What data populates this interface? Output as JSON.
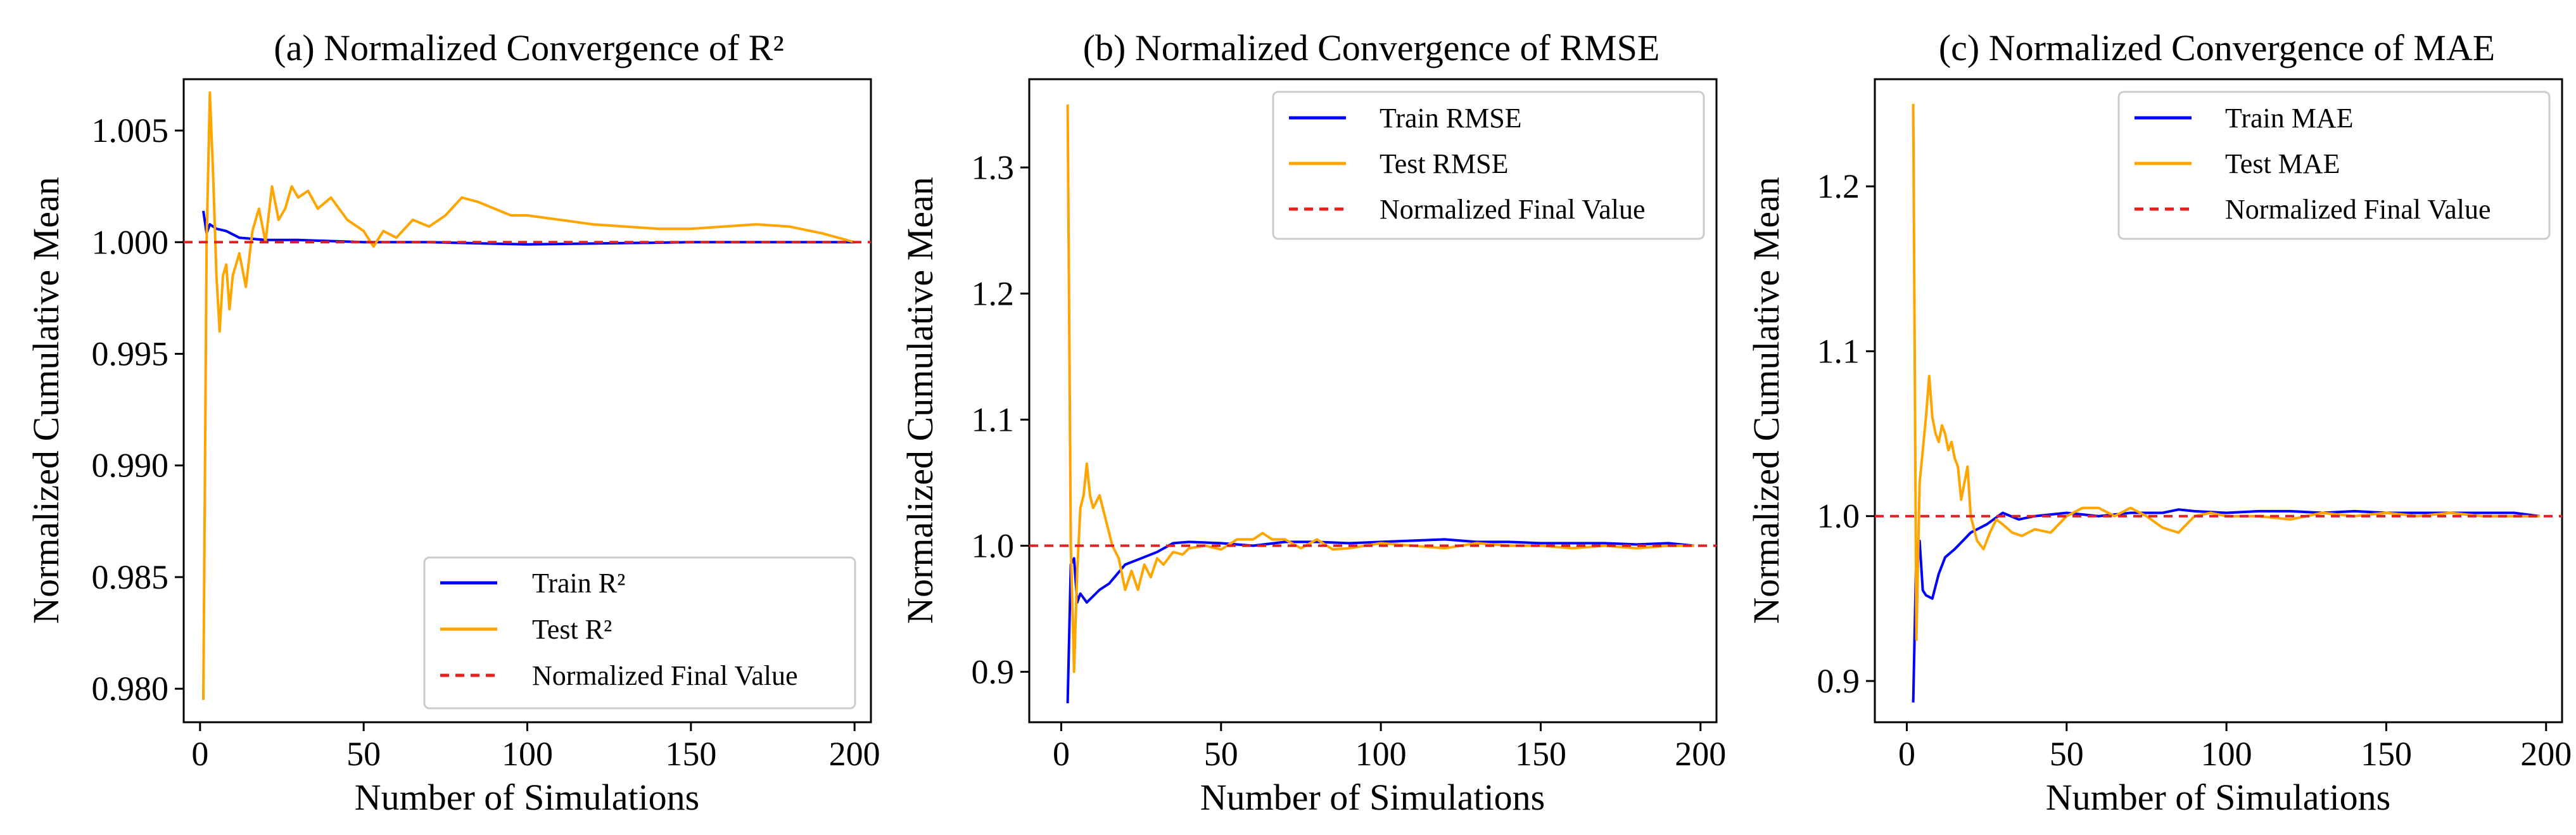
{
  "colors": {
    "train": "#0000ff",
    "test": "#ffa500",
    "final": "#e02020"
  },
  "chart_data": [
    {
      "type": "line",
      "title": "(a) Normalized Convergence of R²",
      "xlabel": "Number of Simulations",
      "ylabel": "Normalized Cumulative Mean",
      "xlim": [
        -5,
        205
      ],
      "ylim": [
        0.9785,
        1.0073
      ],
      "xticks": [
        0,
        50,
        100,
        150,
        200
      ],
      "yticks": [
        0.98,
        0.985,
        0.99,
        0.995,
        1.0,
        1.005
      ],
      "ytick_labels": [
        "0.980",
        "0.985",
        "0.990",
        "0.995",
        "1.000",
        "1.005"
      ],
      "legend_loc": "lower-right",
      "final_value": 1.0,
      "series": [
        {
          "name": "Train R²",
          "color": "#0000ff",
          "x": [
            1,
            2,
            3,
            5,
            8,
            12,
            20,
            30,
            50,
            70,
            100,
            150,
            200
          ],
          "y": [
            1.0014,
            1.0004,
            1.0008,
            1.0006,
            1.0005,
            1.0002,
            1.0001,
            1.0001,
            1.0,
            1.0,
            0.9999,
            1.0,
            1.0
          ]
        },
        {
          "name": "Test R²",
          "color": "#ffa500",
          "x": [
            1,
            2,
            3,
            4,
            5,
            6,
            7,
            8,
            9,
            10,
            12,
            14,
            16,
            18,
            20,
            22,
            24,
            26,
            28,
            30,
            33,
            36,
            40,
            45,
            50,
            53,
            56,
            60,
            65,
            70,
            75,
            80,
            85,
            90,
            95,
            100,
            110,
            120,
            130,
            140,
            150,
            160,
            170,
            180,
            190,
            200
          ],
          "y": [
            0.9795,
            1.0,
            1.0067,
            1.003,
            0.9985,
            0.996,
            0.9985,
            0.999,
            0.997,
            0.9985,
            0.9995,
            0.998,
            1.0005,
            1.0015,
            1.0,
            1.0025,
            1.001,
            1.0015,
            1.0025,
            1.002,
            1.0023,
            1.0015,
            1.002,
            1.001,
            1.0005,
            0.9998,
            1.0005,
            1.0002,
            1.001,
            1.0007,
            1.0012,
            1.002,
            1.0018,
            1.0015,
            1.0012,
            1.0012,
            1.001,
            1.0008,
            1.0007,
            1.0006,
            1.0006,
            1.0007,
            1.0008,
            1.0007,
            1.0004,
            1.0
          ]
        },
        {
          "name": "Normalized Final Value",
          "color": "#e02020",
          "dashed": true,
          "x": [
            -5,
            205
          ],
          "y": [
            1.0,
            1.0
          ]
        }
      ]
    },
    {
      "type": "line",
      "title": "(b) Normalized Convergence of RMSE",
      "xlabel": "Number of Simulations",
      "ylabel": "Normalized Cumulative Mean",
      "xlim": [
        -10,
        205
      ],
      "ylim": [
        0.86,
        1.37
      ],
      "xticks": [
        0,
        50,
        100,
        150,
        200
      ],
      "yticks": [
        0.9,
        1.0,
        1.1,
        1.2,
        1.3
      ],
      "ytick_labels": [
        "0.9",
        "1.0",
        "1.1",
        "1.2",
        "1.3"
      ],
      "legend_loc": "top-right",
      "final_value": 1.0,
      "series": [
        {
          "name": "Train RMSE",
          "color": "#0000ff",
          "x": [
            2,
            3,
            4,
            5,
            6,
            8,
            10,
            12,
            15,
            20,
            25,
            30,
            35,
            40,
            50,
            60,
            70,
            80,
            90,
            100,
            110,
            120,
            130,
            140,
            150,
            160,
            170,
            180,
            190,
            198
          ],
          "y": [
            0.875,
            0.985,
            0.99,
            0.955,
            0.962,
            0.955,
            0.96,
            0.965,
            0.97,
            0.985,
            0.99,
            0.995,
            1.002,
            1.003,
            1.002,
            1.0,
            1.003,
            1.003,
            1.002,
            1.003,
            1.004,
            1.005,
            1.003,
            1.003,
            1.002,
            1.002,
            1.002,
            1.001,
            1.002,
            1.0
          ]
        },
        {
          "name": "Test RMSE",
          "color": "#ffa500",
          "x": [
            2,
            3,
            4,
            5,
            6,
            7,
            8,
            9,
            10,
            12,
            14,
            16,
            18,
            20,
            22,
            24,
            26,
            28,
            30,
            32,
            35,
            38,
            40,
            45,
            50,
            55,
            60,
            63,
            66,
            70,
            75,
            80,
            85,
            90,
            95,
            100,
            110,
            120,
            130,
            140,
            150,
            160,
            170,
            180,
            190,
            198
          ],
          "y": [
            1.35,
            1.0,
            0.9,
            0.98,
            1.03,
            1.04,
            1.065,
            1.04,
            1.03,
            1.04,
            1.02,
            1.0,
            0.99,
            0.965,
            0.98,
            0.965,
            0.985,
            0.975,
            0.99,
            0.985,
            0.995,
            0.993,
            0.998,
            1.0,
            0.997,
            1.005,
            1.005,
            1.01,
            1.005,
            1.005,
            0.998,
            1.005,
            0.997,
            0.998,
            1.0,
            1.002,
            1.0,
            0.998,
            1.002,
            1.0,
            1.0,
            0.998,
            1.0,
            0.998,
            1.0,
            1.0
          ]
        },
        {
          "name": "Normalized Final Value",
          "color": "#e02020",
          "dashed": true,
          "x": [
            -10,
            205
          ],
          "y": [
            1.0,
            1.0
          ]
        }
      ]
    },
    {
      "type": "line",
      "title": "(c) Normalized Convergence of MAE",
      "xlabel": "Number of Simulations",
      "ylabel": "Normalized Cumulative Mean",
      "xlim": [
        -10,
        205
      ],
      "ylim": [
        0.875,
        1.265
      ],
      "xticks": [
        0,
        50,
        100,
        150,
        200
      ],
      "yticks": [
        0.9,
        1.0,
        1.1,
        1.2
      ],
      "ytick_labels": [
        "0.9",
        "1.0",
        "1.1",
        "1.2"
      ],
      "legend_loc": "top-right",
      "final_value": 1.0,
      "series": [
        {
          "name": "Train MAE",
          "color": "#0000ff",
          "x": [
            2,
            3,
            4,
            5,
            6,
            8,
            10,
            12,
            15,
            20,
            25,
            30,
            35,
            40,
            50,
            60,
            70,
            80,
            85,
            90,
            100,
            110,
            120,
            130,
            140,
            150,
            160,
            170,
            180,
            190,
            198
          ],
          "y": [
            0.887,
            0.98,
            0.985,
            0.955,
            0.952,
            0.95,
            0.965,
            0.975,
            0.98,
            0.99,
            0.995,
            1.002,
            0.998,
            1.0,
            1.002,
            1.0,
            1.002,
            1.002,
            1.004,
            1.003,
            1.002,
            1.003,
            1.003,
            1.002,
            1.003,
            1.002,
            1.002,
            1.002,
            1.002,
            1.002,
            1.0
          ]
        },
        {
          "name": "Test MAE",
          "color": "#ffa500",
          "x": [
            2,
            3,
            4,
            5,
            6,
            7,
            8,
            9,
            10,
            11,
            12,
            13,
            14,
            15,
            16,
            17,
            18,
            19,
            20,
            22,
            24,
            26,
            28,
            30,
            33,
            36,
            40,
            45,
            50,
            55,
            60,
            65,
            70,
            75,
            80,
            85,
            90,
            95,
            100,
            110,
            120,
            130,
            140,
            150,
            160,
            170,
            180,
            190,
            198
          ],
          "y": [
            1.25,
            0.925,
            1.02,
            1.04,
            1.06,
            1.085,
            1.06,
            1.05,
            1.045,
            1.055,
            1.05,
            1.04,
            1.045,
            1.035,
            1.03,
            1.01,
            1.02,
            1.03,
            1.0,
            0.985,
            0.98,
            0.99,
            0.998,
            0.995,
            0.99,
            0.988,
            0.992,
            0.99,
            1.0,
            1.005,
            1.005,
            1.0,
            1.005,
            1.0,
            0.993,
            0.99,
            1.0,
            1.002,
            1.0,
            1.0,
            0.998,
            1.002,
            1.0,
            1.002,
            1.0,
            1.002,
            1.0,
            1.0,
            1.0
          ]
        },
        {
          "name": "Normalized Final Value",
          "color": "#e02020",
          "dashed": true,
          "x": [
            -10,
            205
          ],
          "y": [
            1.0,
            1.0
          ]
        }
      ]
    }
  ]
}
